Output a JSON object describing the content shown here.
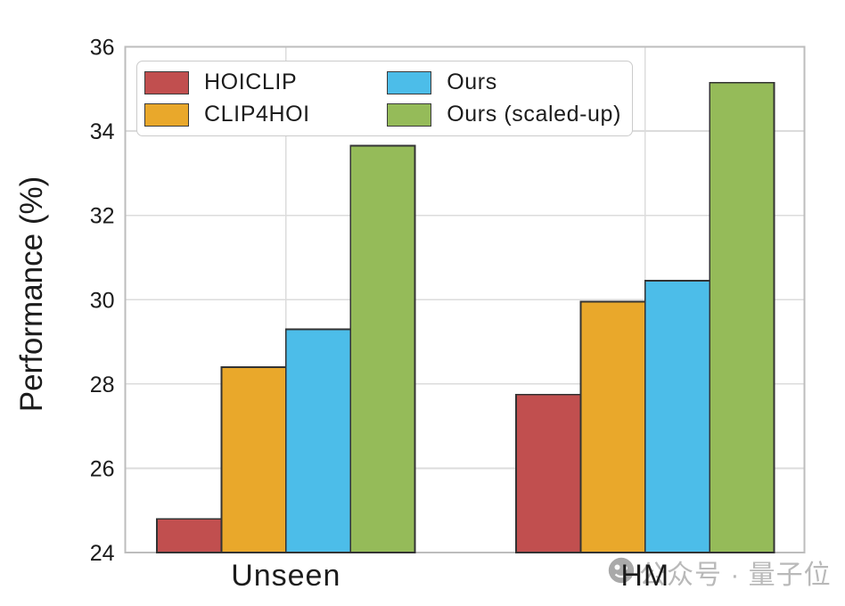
{
  "chart_data": {
    "type": "bar",
    "title": "",
    "xlabel": "",
    "ylabel": "Performance (%)",
    "categories": [
      "Unseen",
      "HM"
    ],
    "series": [
      {
        "name": "HOICLIP",
        "color": "#c14f4f",
        "values": [
          24.8,
          27.75
        ]
      },
      {
        "name": "CLIP4HOI",
        "color": "#e9a82b",
        "values": [
          28.4,
          29.95
        ]
      },
      {
        "name": "Ours",
        "color": "#4cbde9",
        "values": [
          29.3,
          30.45
        ]
      },
      {
        "name": "Ours (scaled-up)",
        "color": "#95bb59",
        "values": [
          33.65,
          35.15
        ]
      }
    ],
    "ylim": [
      24,
      36
    ],
    "yticks": [
      24,
      26,
      28,
      30,
      32,
      34,
      36
    ],
    "grid": true,
    "legend_position": "upper-left",
    "style": {
      "bar_edge_color": "#333333",
      "grid_color": "#dcdcdc",
      "spine_color": "#bdbdbd",
      "text_color": "#1c1c1c",
      "background": "#ffffff"
    }
  },
  "watermark": {
    "text": "公众号 · 量子位",
    "logo": "qbitai-logo",
    "color": "#adadad"
  }
}
